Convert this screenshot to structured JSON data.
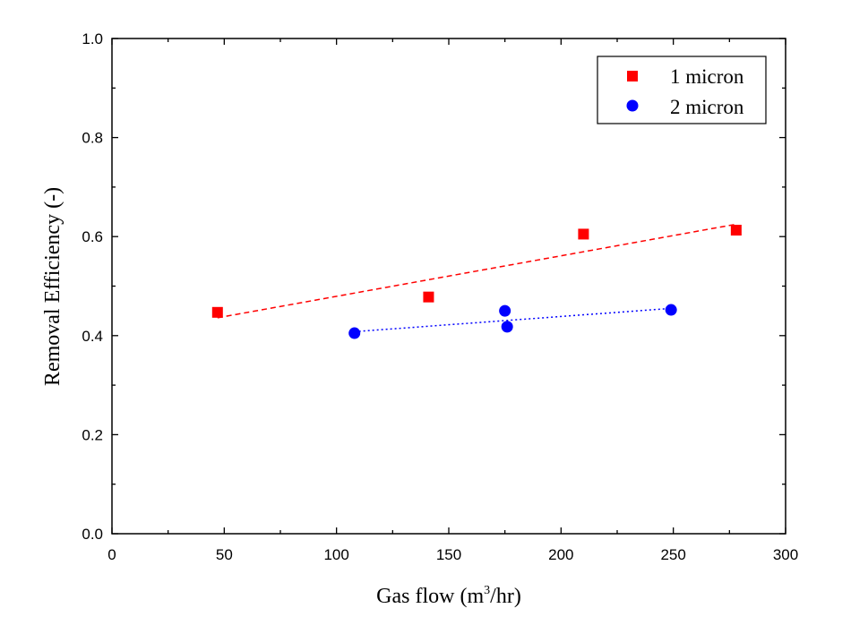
{
  "chart_data": {
    "type": "scatter",
    "title": "",
    "xlabel": "Gas flow (m",
    "xlabel_superscript": "3",
    "xlabel_suffix": "/hr)",
    "ylabel": "Removal Efficiency (-)",
    "xlim": [
      0,
      300
    ],
    "ylim": [
      0.0,
      1.0
    ],
    "x_ticks": [
      0,
      50,
      100,
      150,
      200,
      250,
      300
    ],
    "x_tick_labels": [
      "0",
      "50",
      "100",
      "150",
      "200",
      "250",
      "300"
    ],
    "y_ticks": [
      0.0,
      0.2,
      0.4,
      0.6,
      0.8,
      1.0
    ],
    "y_tick_labels": [
      "0.0",
      "0.2",
      "0.4",
      "0.6",
      "0.8",
      "1.0"
    ],
    "legend_position": "top-right",
    "series": [
      {
        "name": "1 micron",
        "marker": "square",
        "color": "#ff0000",
        "points": [
          [
            47,
            0.447
          ],
          [
            141,
            0.478
          ],
          [
            210,
            0.605
          ],
          [
            278,
            0.613
          ]
        ],
        "trend": {
          "style": "dashed",
          "from": [
            47,
            0.436
          ],
          "to": [
            278,
            0.625
          ]
        }
      },
      {
        "name": "2 micron",
        "marker": "circle",
        "color": "#0000ff",
        "points": [
          [
            108,
            0.405
          ],
          [
            175,
            0.45
          ],
          [
            176,
            0.418
          ],
          [
            249,
            0.452
          ]
        ],
        "trend": {
          "style": "dotted",
          "from": [
            108,
            0.408
          ],
          "to": [
            249,
            0.455
          ]
        }
      }
    ]
  }
}
